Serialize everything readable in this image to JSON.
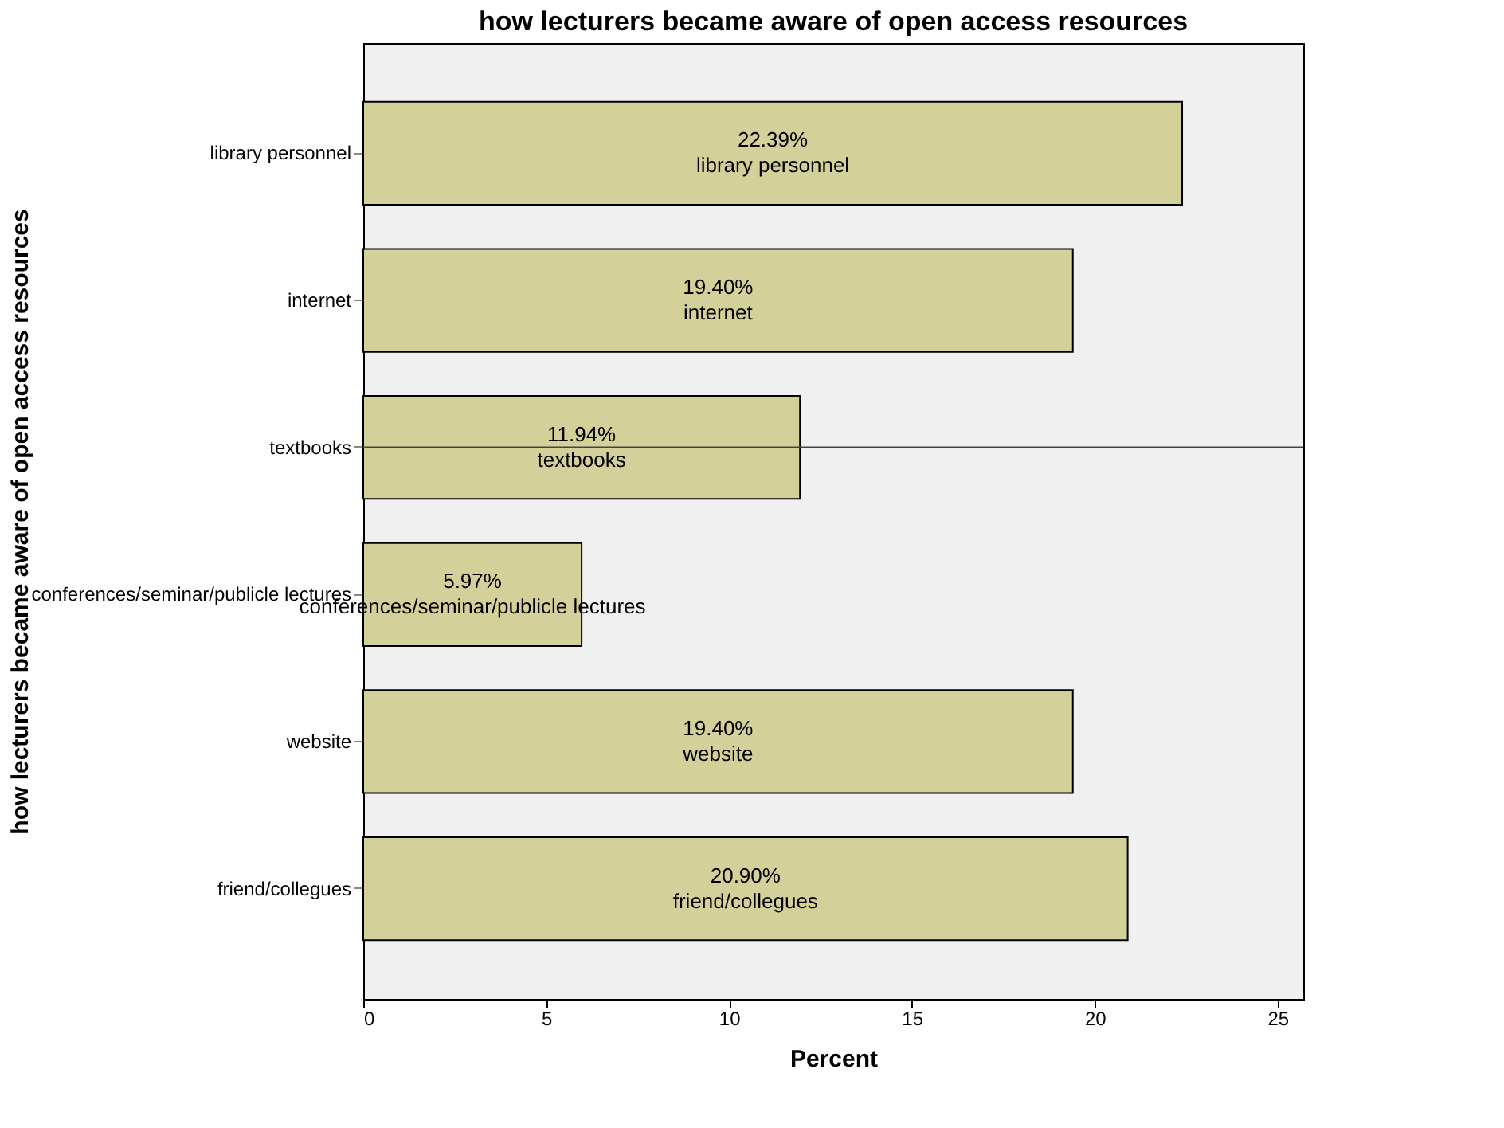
{
  "chart_data": {
    "type": "bar",
    "orientation": "horizontal",
    "title": "how lecturers became aware of open access resources",
    "xlabel": "Percent",
    "ylabel": "how lecturers became aware of open access resources",
    "categories": [
      "library personnel",
      "internet",
      "textbooks",
      "conferences/seminar/publicle lectures",
      "website",
      "friend/collegues"
    ],
    "values": [
      22.39,
      19.4,
      11.94,
      5.97,
      19.4,
      20.9
    ],
    "value_labels": [
      "22.39%",
      "19.40%",
      "11.94%",
      "5.97%",
      "19.40%",
      "20.90%"
    ],
    "color": "#d4d09a",
    "xlim": [
      0,
      25.7
    ],
    "xticks": [
      0,
      5,
      10,
      15,
      20,
      25
    ],
    "grid": false,
    "ref_lines": [
      {
        "axis": "y",
        "value": "textbooks",
        "color": "#444444"
      }
    ]
  }
}
